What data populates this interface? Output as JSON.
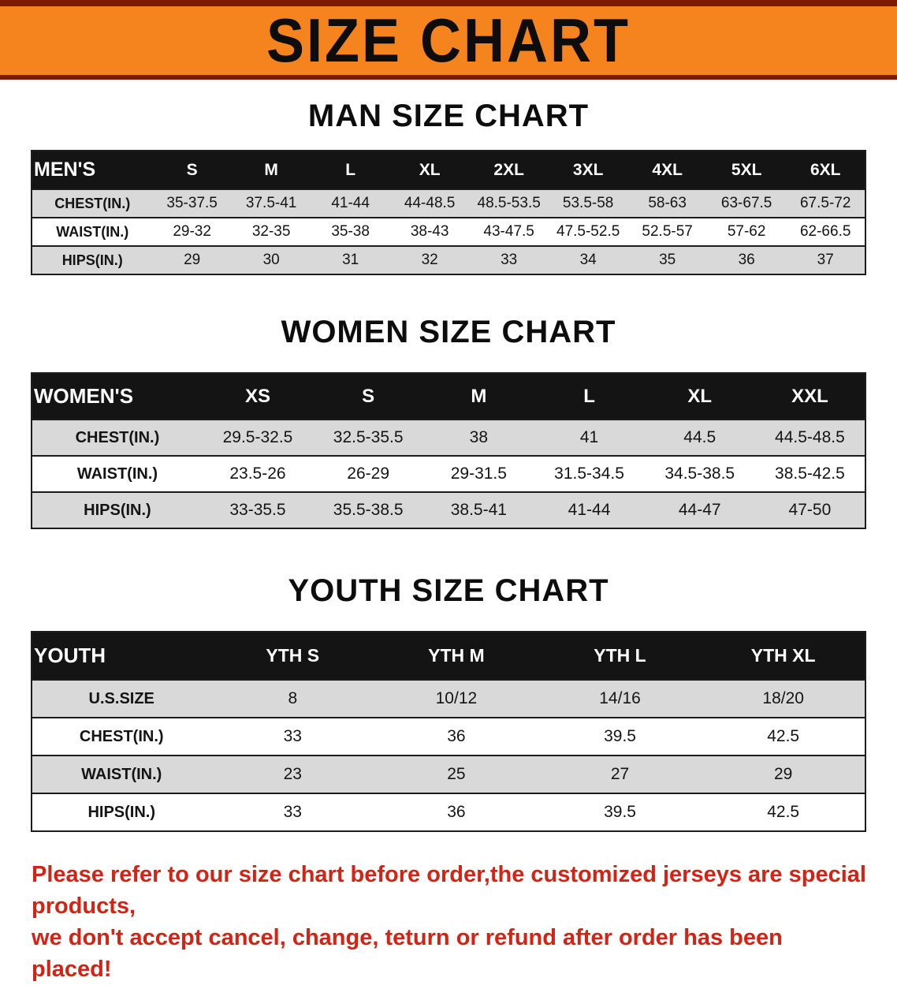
{
  "banner": {
    "title": "SIZE CHART"
  },
  "colors": {
    "accent_orange": "#f5831e",
    "banner_edge": "#7c1a03",
    "header_black": "#141414",
    "row_gray": "#d9d9d9",
    "footer_red": "#d42314"
  },
  "sections": [
    {
      "title": "MAN SIZE CHART",
      "header": [
        "MEN'S",
        "S",
        "M",
        "L",
        "XL",
        "2XL",
        "3XL",
        "4XL",
        "5XL",
        "6XL"
      ],
      "rows": [
        [
          "CHEST(IN.)",
          "35-37.5",
          "37.5-41",
          "41-44",
          "44-48.5",
          "48.5-53.5",
          "53.5-58",
          "58-63",
          "63-67.5",
          "67.5-72"
        ],
        [
          "WAIST(IN.)",
          "29-32",
          "32-35",
          "35-38",
          "38-43",
          "43-47.5",
          "47.5-52.5",
          "52.5-57",
          "57-62",
          "62-66.5"
        ],
        [
          "HIPS(IN.)",
          "29",
          "30",
          "31",
          "32",
          "33",
          "34",
          "35",
          "36",
          "37"
        ]
      ]
    },
    {
      "title": "WOMEN SIZE CHART",
      "header": [
        "WOMEN'S",
        "XS",
        "S",
        "M",
        "L",
        "XL",
        "XXL"
      ],
      "rows": [
        [
          "CHEST(IN.)",
          "29.5-32.5",
          "32.5-35.5",
          "38",
          "41",
          "44.5",
          "44.5-48.5"
        ],
        [
          "WAIST(IN.)",
          "23.5-26",
          "26-29",
          "29-31.5",
          "31.5-34.5",
          "34.5-38.5",
          "38.5-42.5"
        ],
        [
          "HIPS(IN.)",
          "33-35.5",
          "35.5-38.5",
          "38.5-41",
          "41-44",
          "44-47",
          "47-50"
        ]
      ]
    },
    {
      "title": "YOUTH SIZE CHART",
      "header": [
        "YOUTH",
        "YTH S",
        "YTH M",
        "YTH L",
        "YTH XL"
      ],
      "rows": [
        [
          "U.S.SIZE",
          "8",
          "10/12",
          "14/16",
          "18/20"
        ],
        [
          "CHEST(IN.)",
          "33",
          "36",
          "39.5",
          "42.5"
        ],
        [
          "WAIST(IN.)",
          "23",
          "25",
          "27",
          "29"
        ],
        [
          "HIPS(IN.)",
          "33",
          "36",
          "39.5",
          "42.5"
        ]
      ]
    }
  ],
  "footer": {
    "line1": "Please refer to our size chart before order,the customized jerseys are special products,",
    "line2": "we don't accept cancel, change, teturn or refund after order has been placed!"
  }
}
